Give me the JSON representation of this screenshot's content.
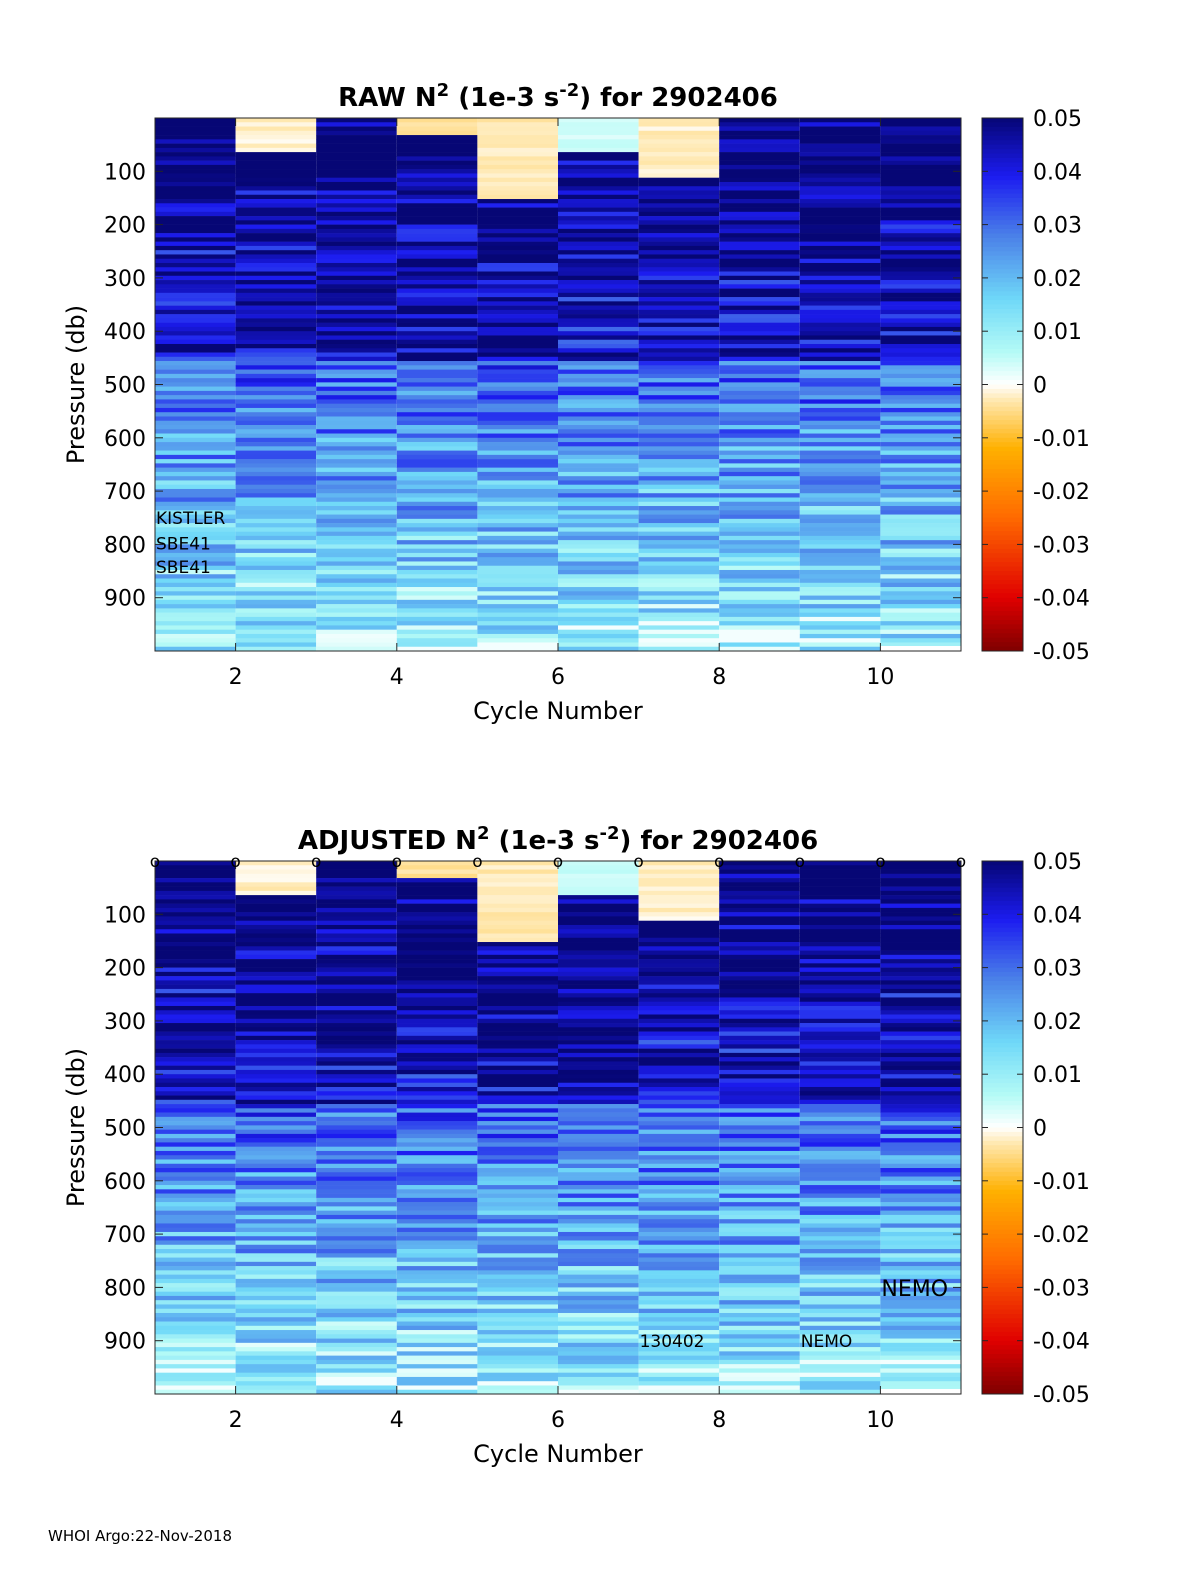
{
  "footer": "WHOI Argo:22-Nov-2018",
  "colormap": [
    [
      0.0,
      "#7f0000"
    ],
    [
      0.1,
      "#e00000"
    ],
    [
      0.25,
      "#ff6a00"
    ],
    [
      0.38,
      "#ffb000"
    ],
    [
      0.47,
      "#ffe8b0"
    ],
    [
      0.5,
      "#ffffff"
    ],
    [
      0.56,
      "#b5fbf6"
    ],
    [
      0.66,
      "#6fd8f8"
    ],
    [
      0.78,
      "#4a7fe8"
    ],
    [
      0.89,
      "#1c1cf0"
    ],
    [
      1.0,
      "#060675"
    ]
  ],
  "chart_data": [
    {
      "type": "heatmap",
      "title_prefix": "RAW N",
      "title_sup1": "2",
      "title_mid": " (1e-3 s",
      "title_sup2": "-2",
      "title_suffix": ") for 2902406",
      "xlabel": "Cycle Number",
      "ylabel": "Pressure (db)",
      "xlim": [
        1,
        11
      ],
      "ylim": [
        0,
        1000
      ],
      "x_ticks": [
        2,
        4,
        6,
        8,
        10
      ],
      "y_ticks": [
        100,
        200,
        300,
        400,
        500,
        600,
        700,
        800,
        900
      ],
      "colorbar_ticks": [
        "0.05",
        "0.04",
        "0.03",
        "0.02",
        "0.01",
        "0",
        "-0.01",
        "-0.02",
        "-0.03",
        "-0.04",
        "-0.05"
      ],
      "clim": [
        -0.05,
        0.05
      ],
      "cycles": [
        1,
        2,
        3,
        4,
        5,
        6,
        7,
        8,
        9,
        10
      ],
      "cycle_bottom_pressure": [
        1000,
        1000,
        1000,
        1000,
        1000,
        1000,
        1000,
        1000,
        1000,
        990
      ],
      "surface_layers": [
        {
          "cycle": 2,
          "to": 60,
          "value": -0.002
        },
        {
          "cycle": 4,
          "to": 30,
          "value": -0.004
        },
        {
          "cycle": 5,
          "to": 150,
          "value": -0.003
        },
        {
          "cycle": 6,
          "to": 60,
          "value": 0.004
        },
        {
          "cycle": 7,
          "to": 110,
          "value": -0.002
        }
      ],
      "cycle_markers": [],
      "annotations": [
        {
          "text": "KISTLER",
          "cycle": 1.0,
          "pressure": 750,
          "size": 17
        },
        {
          "text": "SBE41",
          "cycle": 1.0,
          "pressure": 797,
          "size": 17
        },
        {
          "text": "SBE41",
          "cycle": 1.0,
          "pressure": 842,
          "size": 17
        }
      ]
    },
    {
      "type": "heatmap",
      "title_prefix": "ADJUSTED N",
      "title_sup1": "2",
      "title_mid": " (1e-3 s",
      "title_sup2": "-2",
      "title_suffix": ") for 2902406",
      "xlabel": "Cycle Number",
      "ylabel": "Pressure (db)",
      "xlim": [
        1,
        11
      ],
      "ylim": [
        0,
        1000
      ],
      "x_ticks": [
        2,
        4,
        6,
        8,
        10
      ],
      "y_ticks": [
        100,
        200,
        300,
        400,
        500,
        600,
        700,
        800,
        900
      ],
      "colorbar_ticks": [
        "0.05",
        "0.04",
        "0.03",
        "0.02",
        "0.01",
        "0",
        "-0.01",
        "-0.02",
        "-0.03",
        "-0.04",
        "-0.05"
      ],
      "clim": [
        -0.05,
        0.05
      ],
      "cycles": [
        1,
        2,
        3,
        4,
        5,
        6,
        7,
        8,
        9,
        10
      ],
      "cycle_bottom_pressure": [
        1000,
        1000,
        1000,
        1000,
        1000,
        1000,
        1000,
        1000,
        1000,
        990
      ],
      "surface_layers": [
        {
          "cycle": 2,
          "to": 60,
          "value": -0.002
        },
        {
          "cycle": 4,
          "to": 30,
          "value": -0.004
        },
        {
          "cycle": 5,
          "to": 150,
          "value": -0.003
        },
        {
          "cycle": 6,
          "to": 60,
          "value": 0.004
        },
        {
          "cycle": 7,
          "to": 110,
          "value": -0.002
        }
      ],
      "cycle_markers": {
        "symbol": "o",
        "cycles": [
          1,
          2,
          3,
          4,
          5,
          6,
          7,
          8,
          9,
          10,
          11
        ]
      },
      "annotations": [
        {
          "text": "NEMO",
          "cycle": 10.0,
          "pressure": 800,
          "size": 22
        },
        {
          "text": "130402",
          "cycle": 7.0,
          "pressure": 900,
          "size": 17
        },
        {
          "text": "NEMO",
          "cycle": 9.0,
          "pressure": 900,
          "size": 17
        }
      ]
    }
  ]
}
